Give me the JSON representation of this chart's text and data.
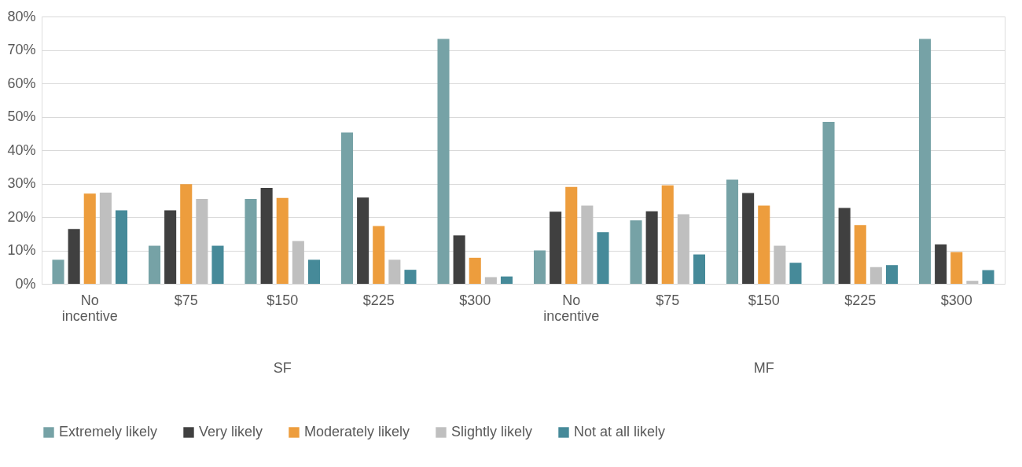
{
  "chart_data": {
    "type": "bar",
    "categories": [
      "No incentive",
      "$75",
      "$150",
      "$225",
      "$300",
      "No incentive",
      "$75",
      "$150",
      "$225",
      "$300"
    ],
    "series": [
      {
        "name": "Extremely likely",
        "color": "#76a2a6",
        "values": [
          7.2,
          11.4,
          25.4,
          45.3,
          73.3,
          10,
          19,
          31.2,
          48.5,
          73.3
        ]
      },
      {
        "name": "Very likely",
        "color": "#404040",
        "values": [
          16.4,
          22,
          28.7,
          25.8,
          14.5,
          21.6,
          21.7,
          27.2,
          22.7,
          11.8
        ]
      },
      {
        "name": "Moderately likely",
        "color": "#ed9d3d",
        "values": [
          27,
          29.8,
          25.7,
          17.3,
          7.8,
          29,
          29.5,
          23.4,
          17.6,
          9.5
        ]
      },
      {
        "name": "Slightly likely",
        "color": "#bfbfbf",
        "values": [
          27.3,
          25.4,
          12.8,
          7.2,
          2,
          23.4,
          20.8,
          11.4,
          5,
          0.9
        ]
      },
      {
        "name": "Not at all likely",
        "color": "#468a99",
        "values": [
          22,
          11.4,
          7.2,
          4.2,
          2.2,
          15.5,
          8.8,
          6.3,
          5.6,
          4.1
        ]
      }
    ],
    "annotations": [
      "SF",
      "MF"
    ],
    "ylim": [
      0,
      80
    ],
    "yticks": [
      {
        "value": 0,
        "label": "0%"
      },
      {
        "value": 10,
        "label": "10%"
      },
      {
        "value": 20,
        "label": "20%"
      },
      {
        "value": 30,
        "label": "30%"
      },
      {
        "value": 40,
        "label": "40%"
      },
      {
        "value": 50,
        "label": "50%"
      },
      {
        "value": 60,
        "label": "60%"
      },
      {
        "value": 70,
        "label": "70%"
      },
      {
        "value": 80,
        "label": "80%"
      }
    ],
    "grid": "y",
    "legend": "bottom"
  }
}
